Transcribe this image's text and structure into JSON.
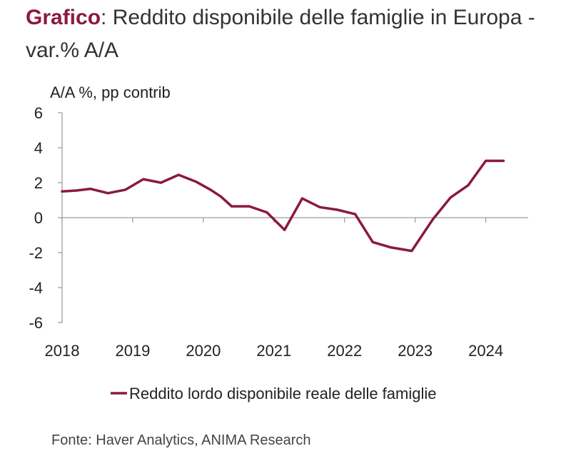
{
  "header": {
    "title_lead": "Grafico",
    "title_rest": ": Reddito disponibile delle famiglie in Europa - var.% A/A"
  },
  "chart_data": {
    "type": "line",
    "title": "Reddito disponibile delle famiglie in Europa - var.% A/A",
    "ylabel": "A/A %, pp contrib",
    "xlabel": "",
    "ylim": [
      -6,
      6
    ],
    "yticks": [
      6,
      4,
      2,
      0,
      -2,
      -4,
      -6
    ],
    "ytick_labels": [
      "6",
      "4",
      "2",
      "0",
      "-2",
      "-4",
      "-6"
    ],
    "xlim": [
      2018,
      2024.6
    ],
    "xticks": [
      2018,
      2019,
      2020,
      2021,
      2022,
      2023,
      2024
    ],
    "xtick_labels": [
      "2018",
      "2019",
      "2020",
      "2021",
      "2022",
      "2023",
      "2024"
    ],
    "grid": false,
    "legend_position": "bottom",
    "series": [
      {
        "name": "Reddito lordo disponibile reale delle famiglie",
        "color": "#8b1a3c",
        "x": [
          2018.0,
          2018.2,
          2018.4,
          2018.65,
          2018.9,
          2019.15,
          2019.4,
          2019.65,
          2019.9,
          2020.1,
          2020.25,
          2020.4,
          2020.65,
          2020.9,
          2021.15,
          2021.4,
          2021.65,
          2021.9,
          2022.15,
          2022.4,
          2022.65,
          2022.95,
          2023.25,
          2023.5,
          2023.75,
          2024.0,
          2024.25
        ],
        "values": [
          1.5,
          1.55,
          1.65,
          1.4,
          1.6,
          2.2,
          2.0,
          2.45,
          2.05,
          1.6,
          1.2,
          0.65,
          0.65,
          0.3,
          -0.7,
          1.1,
          0.6,
          0.45,
          0.2,
          -1.4,
          -1.7,
          -1.9,
          -0.1,
          1.15,
          1.85,
          3.25,
          3.25
        ]
      }
    ]
  },
  "source": {
    "text": "Fonte: Haver Analytics, ANIMA Research"
  }
}
